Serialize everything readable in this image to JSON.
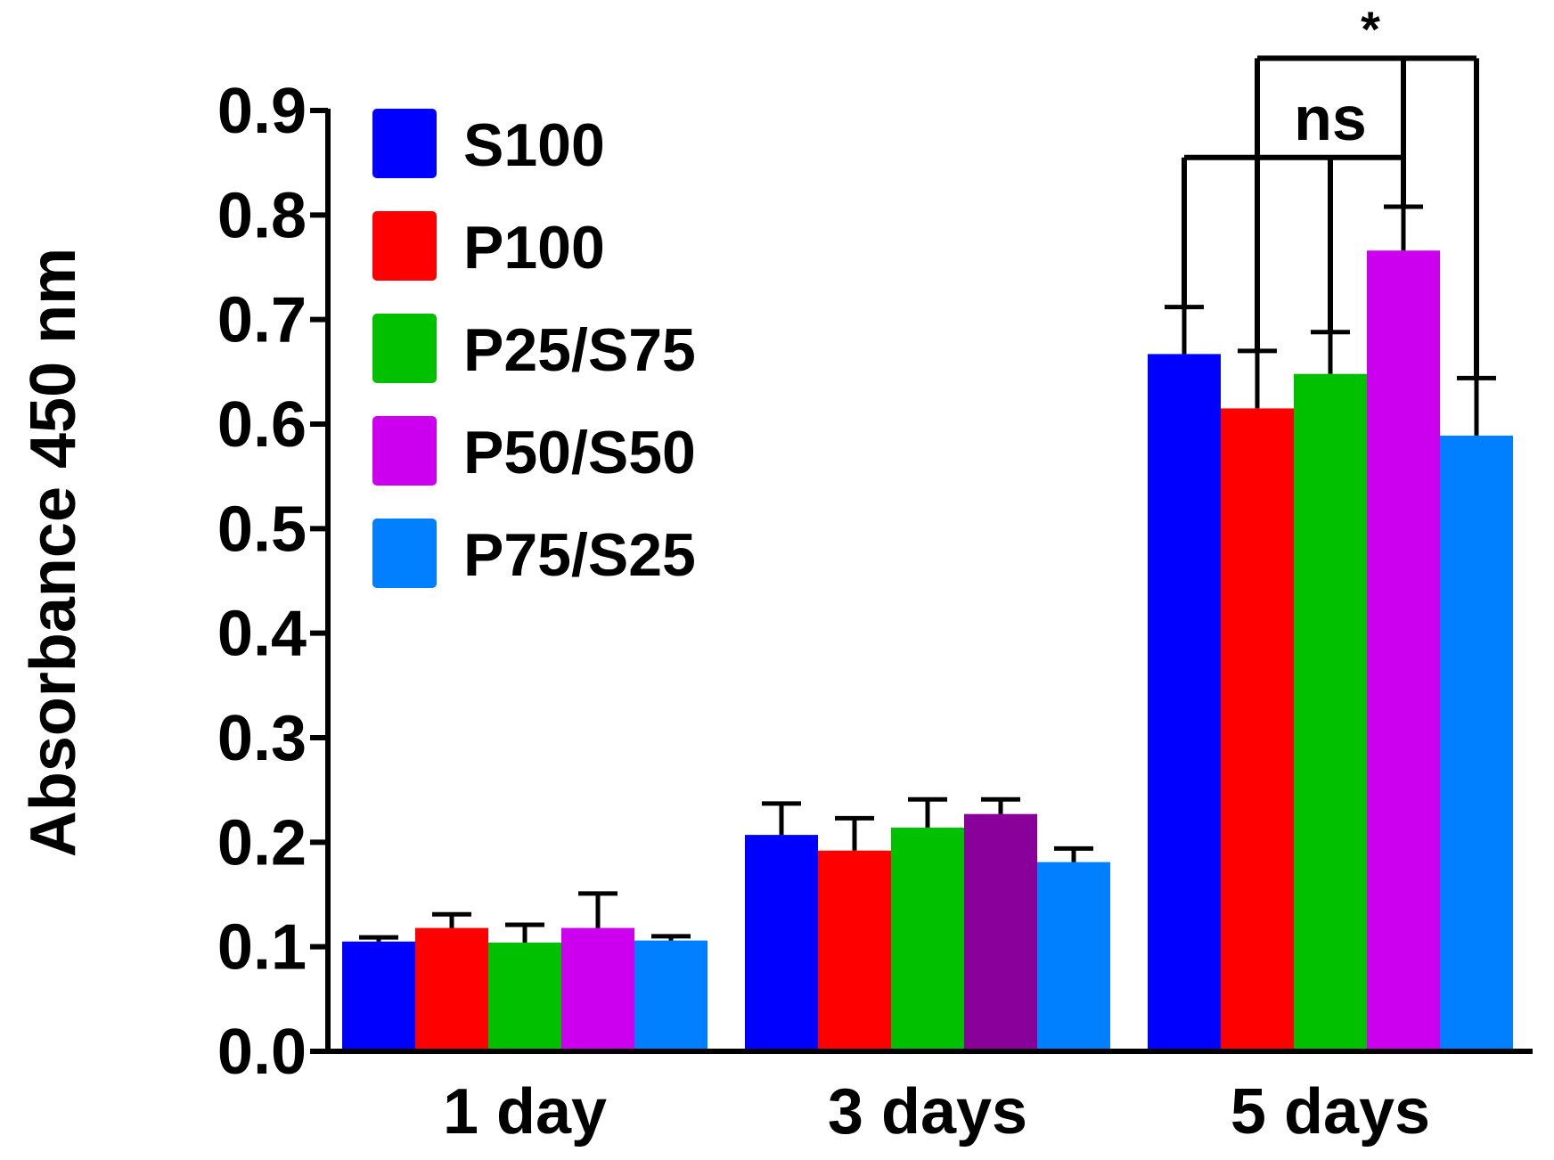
{
  "chart_data": {
    "type": "bar",
    "title": "",
    "xlabel": "",
    "ylabel": "Absorbance 450 nm",
    "ylim": [
      0,
      0.9
    ],
    "yticks": [
      "0.0",
      "0.1",
      "0.2",
      "0.3",
      "0.4",
      "0.5",
      "0.6",
      "0.7",
      "0.8",
      "0.9"
    ],
    "categories": [
      "1 day",
      "3 days",
      "5 days"
    ],
    "legend_position": "top-left",
    "series": [
      {
        "name": "S100",
        "color": "#0000ff",
        "values": [
          0.105,
          0.207,
          0.667
        ],
        "errors": [
          0.004,
          0.03,
          0.045
        ]
      },
      {
        "name": "P100",
        "color": "#ff0000",
        "values": [
          0.118,
          0.192,
          0.615
        ],
        "errors": [
          0.013,
          0.031,
          0.055
        ]
      },
      {
        "name": "P25/S75",
        "color": "#00c000",
        "values": [
          0.104,
          0.214,
          0.648
        ],
        "errors": [
          0.017,
          0.027,
          0.04
        ]
      },
      {
        "name": "P50/S50",
        "color": "#cc00ee",
        "values": [
          0.118,
          0.227,
          0.766
        ],
        "errors": [
          0.033,
          0.014,
          0.042
        ]
      },
      {
        "name": "P75/S25",
        "color": "#0080ff",
        "values": [
          0.106,
          0.181,
          0.589
        ],
        "errors": [
          0.004,
          0.013,
          0.055
        ]
      }
    ],
    "bar_color_overrides": [
      {
        "series": "P50/S50",
        "category": "3 days",
        "color": "#880099"
      }
    ],
    "annotations": [
      {
        "text": "ns",
        "category": "5 days",
        "from": "S100",
        "to": "P50/S50",
        "bracket_y": 0.855
      },
      {
        "text": "*",
        "category": "5 days",
        "from": "P100",
        "to": "P75/S25",
        "bracket_y": 0.95
      }
    ]
  }
}
